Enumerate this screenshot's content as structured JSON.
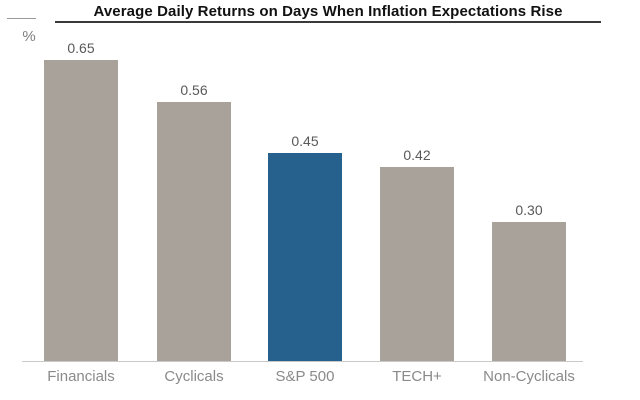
{
  "chart_data": {
    "type": "bar",
    "title": "Average Daily Returns on Days When Inflation Expectations Rise",
    "ylabel": "%",
    "xlabel": "",
    "categories": [
      "Financials",
      "Cyclicals",
      "S&P 500",
      "TECH+",
      "Non-Cyclicals"
    ],
    "values": [
      0.65,
      0.56,
      0.45,
      0.42,
      0.3
    ],
    "value_labels": [
      "0.65",
      "0.56",
      "0.45",
      "0.42",
      "0.30"
    ],
    "highlighted_category": "S&P 500",
    "bar_colors": [
      "#a9a29b",
      "#a9a29b",
      "#26608d",
      "#a9a29b",
      "#a9a29b"
    ],
    "colors": {
      "bar_default": "#a9a29b",
      "bar_highlight": "#26608d",
      "title_text": "#111111",
      "value_label_text": "#595959",
      "category_label_text": "#8a8a8a",
      "baseline": "#c9c9c9"
    },
    "ylim": [
      0,
      0.78
    ],
    "grid": false,
    "legend": "none"
  }
}
